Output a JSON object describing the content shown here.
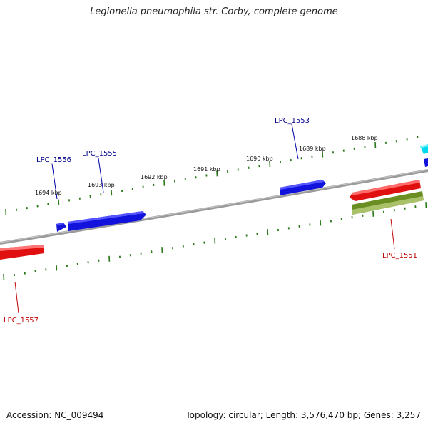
{
  "title": "Legionella pneumophila str. Corby, complete genome",
  "footer": {
    "accession": "Accession: NC_009494",
    "stats": "Topology: circular; Length: 3,576,470 bp; Genes: 3,257"
  },
  "colors": {
    "backbone": "#8a8a8a",
    "ticks": "#2a7a1a",
    "forward_cds": "#1010e0",
    "reverse_cds": "#e81010",
    "rna": "#6b8e23",
    "other": "#00e5ee",
    "label_forward": "#00008b",
    "label_reverse": "#c00000"
  },
  "tick_labels": [
    "1694 kbp",
    "1693 kbp",
    "1692 kbp",
    "1691 kbp",
    "1690 kbp",
    "1689 kbp",
    "1688 kbp"
  ],
  "gene_labels": [
    {
      "name": "LPC_1556",
      "strand": "forward"
    },
    {
      "name": "LPC_1555",
      "strand": "forward"
    },
    {
      "name": "LPC_1553",
      "strand": "forward"
    },
    {
      "name": "LPC_1551",
      "strand": "reverse"
    },
    {
      "name": "LPC_1557",
      "strand": "reverse"
    }
  ]
}
